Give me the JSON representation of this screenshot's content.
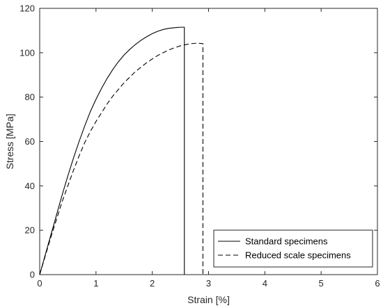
{
  "chart_data": {
    "type": "line",
    "title": "",
    "xlabel": "Strain [%]",
    "ylabel": "Stress [MPa]",
    "xlim": [
      0,
      6
    ],
    "ylim": [
      0,
      120
    ],
    "xticks": [
      0,
      1,
      2,
      3,
      4,
      5,
      6
    ],
    "yticks": [
      0,
      20,
      40,
      60,
      80,
      100,
      120
    ],
    "grid": false,
    "legend_position": "bottom-right",
    "series": [
      {
        "name": "Standard specimens",
        "style": "solid",
        "color": "#000000",
        "x": [
          0,
          0.1,
          0.2,
          0.3,
          0.4,
          0.5,
          0.6,
          0.7,
          0.8,
          0.9,
          1.0,
          1.1,
          1.2,
          1.3,
          1.4,
          1.5,
          1.6,
          1.7,
          1.8,
          1.9,
          2.0,
          2.1,
          2.2,
          2.3,
          2.4,
          2.5,
          2.57,
          2.57
        ],
        "y": [
          0,
          9,
          18,
          27,
          36,
          44.5,
          52.5,
          60,
          67,
          73.5,
          79,
          84,
          88.5,
          92.5,
          96,
          99,
          101.5,
          103.7,
          105.6,
          107.2,
          108.6,
          109.7,
          110.5,
          111,
          111.3,
          111.5,
          111.5,
          0
        ]
      },
      {
        "name": "Reduced scale specimens",
        "style": "dashed",
        "color": "#000000",
        "x": [
          0,
          0.1,
          0.2,
          0.3,
          0.4,
          0.5,
          0.6,
          0.7,
          0.8,
          0.9,
          1.0,
          1.1,
          1.2,
          1.3,
          1.4,
          1.5,
          1.6,
          1.7,
          1.8,
          1.9,
          2.0,
          2.1,
          2.2,
          2.3,
          2.4,
          2.5,
          2.6,
          2.7,
          2.8,
          2.9,
          2.9
        ],
        "y": [
          0,
          8.5,
          17,
          25,
          33,
          40,
          47,
          53.5,
          59.5,
          64.5,
          69,
          73,
          77,
          80.5,
          83.5,
          86.5,
          89,
          91.5,
          93.5,
          95.5,
          97.2,
          98.8,
          100.1,
          101.3,
          102.3,
          103.1,
          103.7,
          104.1,
          104.3,
          104.1,
          0
        ]
      }
    ]
  }
}
